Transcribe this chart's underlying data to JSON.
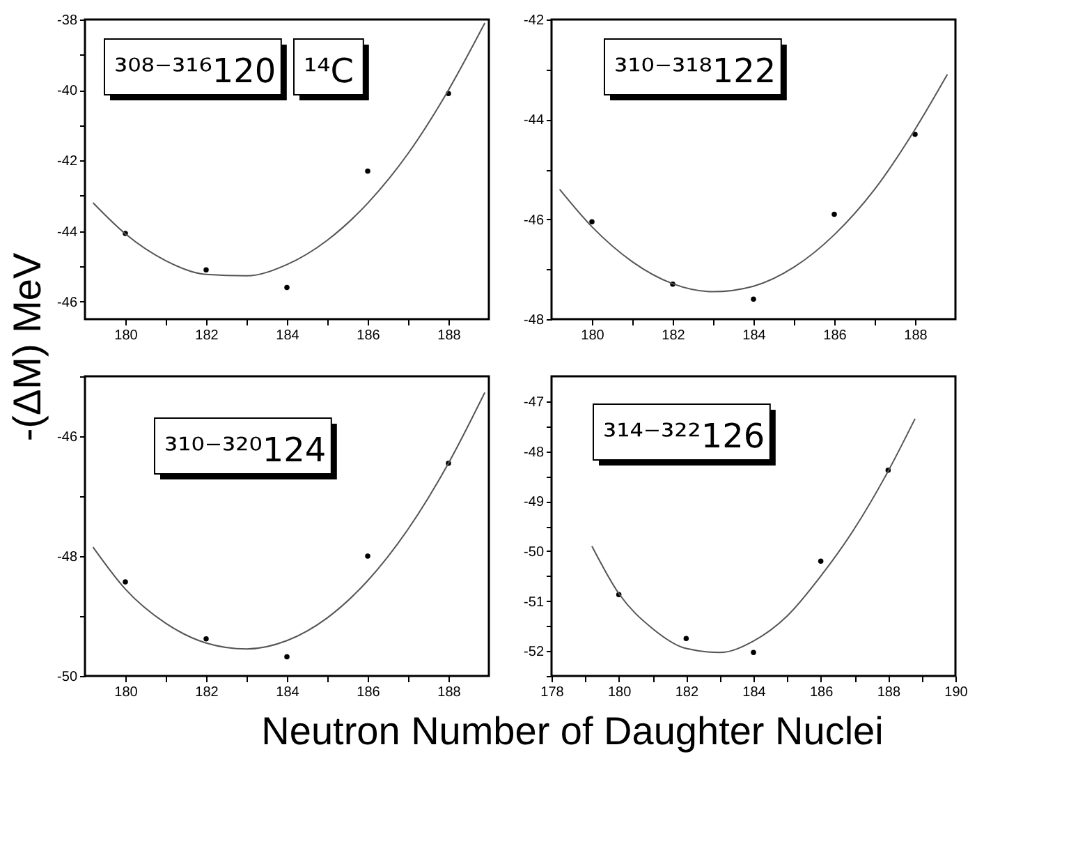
{
  "chart_data": [
    {
      "type": "scatter",
      "ylabel": "-(ΔM) MeV",
      "xlim": [
        179,
        189
      ],
      "ylim": [
        -46.5,
        -38
      ],
      "xticks": [
        180,
        {
          "value": 181,
          "label": null
        },
        182,
        {
          "value": 183,
          "label": null
        },
        184,
        {
          "value": 185,
          "label": null
        },
        186,
        {
          "value": 187,
          "label": null
        },
        188
      ],
      "yticks": [
        -46,
        {
          "value": -45,
          "label": null
        },
        -44,
        {
          "value": -43,
          "label": null
        },
        -42,
        {
          "value": -41,
          "label": null
        },
        -40,
        {
          "value": -39,
          "label": null
        },
        -38
      ],
      "grid": false,
      "annotations": [
        "³⁰⁸⁻³¹⁶120",
        "¹⁴C"
      ],
      "series": [
        {
          "marker": "circle",
          "color": "#000000",
          "x": [
            180,
            182,
            184,
            186,
            188
          ],
          "values": [
            -44.07,
            -45.1,
            -45.6,
            -42.3,
            -40.1
          ]
        },
        {
          "type": "line",
          "marker": "none",
          "color": "#555555",
          "x": [
            179.2,
            180,
            181,
            182,
            183,
            184,
            185,
            186,
            187,
            188,
            188.9
          ],
          "values": [
            -43.2,
            -44.08,
            -44.84,
            -45.23,
            -45.27,
            -44.95,
            -44.26,
            -43.21,
            -41.8,
            -40.0,
            -38.1
          ]
        }
      ]
    },
    {
      "type": "scatter",
      "xlim": [
        179,
        189
      ],
      "ylim": [
        -48,
        -42
      ],
      "xticks": [
        180,
        {
          "value": 181,
          "label": null
        },
        182,
        {
          "value": 183,
          "label": null
        },
        184,
        {
          "value": 185,
          "label": null
        },
        186,
        {
          "value": 187,
          "label": null
        },
        188
      ],
      "yticks": [
        -48,
        {
          "value": -47,
          "label": null
        },
        -46,
        {
          "value": -45,
          "label": null
        },
        -44,
        {
          "value": -43,
          "label": null
        },
        -42
      ],
      "grid": false,
      "annotations": [
        "³¹⁰⁻³¹⁸122"
      ],
      "series": [
        {
          "marker": "circle",
          "color": "#000000",
          "x": [
            180,
            182,
            184,
            186,
            188
          ],
          "values": [
            -46.05,
            -47.3,
            -47.6,
            -45.9,
            -44.3
          ]
        },
        {
          "type": "line",
          "marker": "none",
          "color": "#555555",
          "x": [
            179.2,
            180,
            181,
            182,
            183,
            184,
            185,
            186,
            187,
            188,
            188.8
          ],
          "values": [
            -45.4,
            -46.15,
            -46.85,
            -47.29,
            -47.45,
            -47.34,
            -46.96,
            -46.31,
            -45.4,
            -44.2,
            -43.1
          ]
        }
      ]
    },
    {
      "type": "scatter",
      "xlabel": "Neutron Number of Daughter Nuclei",
      "xlim": [
        179,
        189
      ],
      "ylim": [
        -50,
        -45
      ],
      "xticks": [
        180,
        {
          "value": 181,
          "label": null
        },
        182,
        {
          "value": 183,
          "label": null
        },
        184,
        {
          "value": 185,
          "label": null
        },
        186,
        {
          "value": 187,
          "label": null
        },
        188
      ],
      "yticks": [
        -50,
        {
          "value": -49,
          "label": null
        },
        -48,
        {
          "value": -47,
          "label": null
        },
        -46,
        {
          "value": -45,
          "label": null
        }
      ],
      "grid": false,
      "annotations": [
        "³¹⁰⁻³²⁰124"
      ],
      "series": [
        {
          "marker": "circle",
          "color": "#000000",
          "x": [
            180,
            182,
            184,
            186,
            188
          ],
          "values": [
            -48.43,
            -49.38,
            -49.68,
            -48.0,
            -46.45
          ]
        },
        {
          "type": "line",
          "marker": "none",
          "color": "#555555",
          "x": [
            179.2,
            180,
            181,
            182,
            183,
            184,
            185,
            186,
            187,
            188,
            188.9
          ],
          "values": [
            -47.85,
            -48.55,
            -49.12,
            -49.45,
            -49.55,
            -49.41,
            -49.03,
            -48.41,
            -47.55,
            -46.45,
            -45.27
          ]
        }
      ]
    },
    {
      "type": "scatter",
      "xlim": [
        178,
        190
      ],
      "ylim": [
        -52.5,
        -46.5
      ],
      "xticks": [
        178,
        {
          "value": 179,
          "label": null
        },
        180,
        {
          "value": 181,
          "label": null
        },
        182,
        {
          "value": 183,
          "label": null
        },
        184,
        {
          "value": 185,
          "label": null
        },
        186,
        {
          "value": 187,
          "label": null
        },
        188,
        {
          "value": 189,
          "label": null
        },
        190
      ],
      "yticks": [
        {
          "value": -52.5,
          "label": null
        },
        -52,
        {
          "value": -51.5,
          "label": null
        },
        -51,
        {
          "value": -50.5,
          "label": null
        },
        -50,
        {
          "value": -49.5,
          "label": null
        },
        -49,
        {
          "value": -48.5,
          "label": null
        },
        -48,
        {
          "value": -47.5,
          "label": null
        },
        -47
      ],
      "grid": false,
      "annotations": [
        "³¹⁴⁻³²²126"
      ],
      "series": [
        {
          "marker": "circle",
          "color": "#000000",
          "x": [
            180,
            182,
            184,
            186,
            188
          ],
          "values": [
            -50.87,
            -51.75,
            -52.03,
            -50.2,
            -48.38
          ]
        },
        {
          "type": "line",
          "marker": "none",
          "color": "#555555",
          "x": [
            179.2,
            180,
            181,
            182,
            183,
            184,
            185,
            186,
            187,
            188,
            188.8
          ],
          "values": [
            -49.9,
            -50.85,
            -51.55,
            -51.95,
            -52.03,
            -51.8,
            -51.3,
            -50.5,
            -49.55,
            -48.4,
            -47.35
          ]
        }
      ]
    }
  ]
}
